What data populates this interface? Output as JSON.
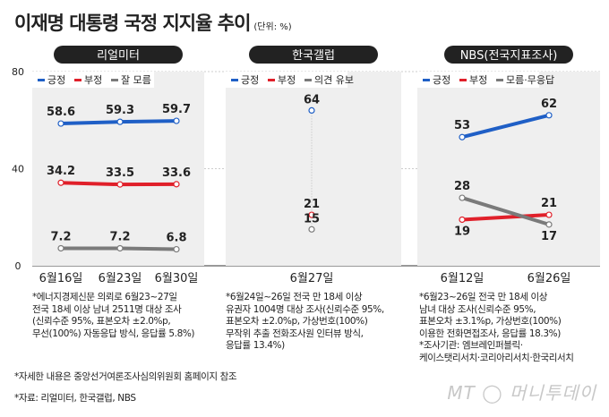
{
  "title": "이재명 대통령 국정 지지율 추이",
  "unit": "(단위: %)",
  "chart_data": [
    {
      "type": "line",
      "title": "리얼미터",
      "ylim": [
        0,
        80
      ],
      "yticks": [
        0,
        40,
        80
      ],
      "categories": [
        "6월16일",
        "6월23일",
        "6월30일"
      ],
      "legend": [
        "긍정",
        "부정",
        "잘 모름"
      ],
      "legend_placement": "top-left",
      "series": [
        {
          "name": "긍정",
          "color": "#1f5fc6",
          "values": [
            58.6,
            59.3,
            59.7
          ]
        },
        {
          "name": "부정",
          "color": "#e0202a",
          "values": [
            34.2,
            33.5,
            33.6
          ]
        },
        {
          "name": "잘 모름",
          "color": "#7a7a7a",
          "values": [
            7.2,
            7.2,
            6.8
          ]
        }
      ]
    },
    {
      "type": "scatter",
      "title": "한국갤럽",
      "ylim": [
        0,
        80
      ],
      "categories": [
        "6월27일"
      ],
      "legend": [
        "긍정",
        "부정",
        "의견 유보"
      ],
      "legend_placement": "top-left",
      "series": [
        {
          "name": "긍정",
          "color": "#1f5fc6",
          "values": [
            64
          ]
        },
        {
          "name": "부정",
          "color": "#e0202a",
          "values": [
            21
          ]
        },
        {
          "name": "의견 유보",
          "color": "#7a7a7a",
          "values": [
            15
          ]
        }
      ]
    },
    {
      "type": "line",
      "title": "NBS(전국지표조사)",
      "ylim": [
        0,
        80
      ],
      "categories": [
        "6월12일",
        "6월26일"
      ],
      "legend": [
        "긍정",
        "부정",
        "모름·무응답"
      ],
      "legend_placement": "top-left",
      "series": [
        {
          "name": "긍정",
          "color": "#1f5fc6",
          "values": [
            53,
            62
          ]
        },
        {
          "name": "부정",
          "color": "#e0202a",
          "values": [
            19,
            21
          ]
        },
        {
          "name": "모름·무응답",
          "color": "#7a7a7a",
          "values": [
            28,
            17
          ]
        }
      ]
    }
  ],
  "notes": [
    "*에너지경제신문 의뢰로 6월23~27일\n전국 18세 이상 남녀 2511명 대상 조사\n(신뢰수준 95%, 표본오차 ±2.0%p,\n무선(100%) 자동응답 방식, 응답률 5.8%)",
    "*6월24일~26일 전국 만 18세 이상\n유권자 1004명 대상 조사(신뢰수준 95%,\n표본오차 ±2.0%p, 가상번호(100%)\n무작위 추출 전화조사원 인터뷰 방식,\n응답률 13.4%)",
    "*6월23~26일 전국 만 18세 이상\n남녀 대상 조사(신뢰수준 95%,\n표본오차 ±3.1%p, 가상번호(100%)\n이용한 전화면접조사, 응답률 18.3%)\n*조사기관: 엠브레인퍼블릭·\n케이스탯리서치·코리아리서치·한국리서치"
  ],
  "footnote1": "*자세한 내용은 중앙선거여론조사심의위원회 홈페이지 참조",
  "footnote2": "*자료: 리얼미터, 한국갤럽, NBS",
  "logo": "MT 머니투데이"
}
